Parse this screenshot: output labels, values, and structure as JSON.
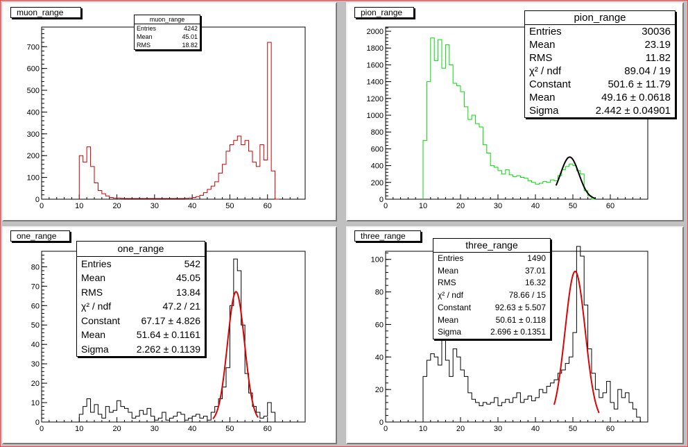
{
  "chart_data": [
    {
      "type": "bar",
      "title": "muon_range",
      "xlim": [
        0,
        70
      ],
      "ylim": [
        0,
        790
      ],
      "xticks": [
        0,
        10,
        20,
        30,
        40,
        50,
        60
      ],
      "yticks": [
        0,
        100,
        200,
        300,
        400,
        500,
        600,
        700
      ],
      "line_color": "#cc0000",
      "bin_width": 1,
      "x": [
        10,
        11,
        12,
        13,
        14,
        15,
        16,
        17,
        18,
        19,
        20,
        21,
        22,
        23,
        24,
        25,
        26,
        27,
        28,
        29,
        30,
        31,
        32,
        33,
        34,
        35,
        36,
        37,
        38,
        39,
        40,
        41,
        42,
        43,
        44,
        45,
        46,
        47,
        48,
        49,
        50,
        51,
        52,
        53,
        54,
        55,
        56,
        57,
        58,
        59,
        60,
        61,
        62
      ],
      "values": [
        200,
        170,
        240,
        150,
        75,
        40,
        25,
        15,
        8,
        5,
        5,
        4,
        3,
        3,
        3,
        3,
        3,
        3,
        3,
        3,
        3,
        3,
        3,
        3,
        3,
        3,
        3,
        3,
        4,
        5,
        8,
        12,
        18,
        30,
        45,
        60,
        80,
        120,
        160,
        220,
        250,
        270,
        290,
        250,
        270,
        220,
        170,
        150,
        250,
        180,
        720,
        130,
        0
      ],
      "stats": {
        "title": "muon_range",
        "rows": [
          {
            "label": "Entries",
            "value": "4242"
          },
          {
            "label": "Mean",
            "value": "45.01"
          },
          {
            "label": "RMS",
            "value": "18.82"
          }
        ]
      }
    },
    {
      "type": "bar",
      "title": "pion_range",
      "xlim": [
        0,
        70
      ],
      "ylim": [
        0,
        2050
      ],
      "xticks": [
        0,
        10,
        20,
        30,
        40,
        50,
        60
      ],
      "yticks": [
        0,
        200,
        400,
        600,
        800,
        1000,
        1200,
        1400,
        1600,
        1800,
        2000
      ],
      "line_color": "#00dd00",
      "bin_width": 1,
      "x": [
        10,
        11,
        12,
        13,
        14,
        15,
        16,
        17,
        18,
        19,
        20,
        21,
        22,
        23,
        24,
        25,
        26,
        27,
        28,
        29,
        30,
        31,
        32,
        33,
        34,
        35,
        36,
        37,
        38,
        39,
        40,
        41,
        42,
        43,
        44,
        45,
        46,
        47,
        48,
        49,
        50,
        51,
        52,
        53,
        54,
        55
      ],
      "values": [
        700,
        1400,
        1920,
        1650,
        1900,
        1560,
        1840,
        1600,
        1380,
        1350,
        1280,
        1100,
        950,
        1000,
        900,
        860,
        650,
        550,
        400,
        380,
        340,
        300,
        350,
        290,
        270,
        280,
        260,
        250,
        220,
        200,
        180,
        190,
        210,
        200,
        230,
        220,
        280,
        350,
        390,
        420,
        400,
        340,
        300,
        100,
        40,
        0
      ],
      "fit": {
        "color": "#000000",
        "constant": 501.6,
        "mean": 49.16,
        "sigma": 2.442,
        "range": [
          45.5,
          56
        ]
      },
      "stats": {
        "title": "pion_range",
        "rows": [
          {
            "label": "Entries",
            "value": "30036"
          },
          {
            "label": "Mean",
            "value": "23.19"
          },
          {
            "label": "RMS",
            "value": "11.82"
          },
          {
            "label": "χ² / ndf",
            "value": "89.04 / 19"
          },
          {
            "label": "Constant",
            "value": "501.6 ± 11.79"
          },
          {
            "label": "Mean",
            "value": "49.16 ± 0.0618"
          },
          {
            "label": "Sigma",
            "value": "2.442 ± 0.04901"
          }
        ]
      }
    },
    {
      "type": "bar",
      "title": "one_range",
      "xlim": [
        0,
        70
      ],
      "ylim": [
        0,
        88
      ],
      "xticks": [
        0,
        10,
        20,
        30,
        40,
        50,
        60
      ],
      "yticks": [
        0,
        10,
        20,
        30,
        40,
        50,
        60,
        70,
        80
      ],
      "line_color": "#000000",
      "bin_width": 1,
      "x": [
        10,
        11,
        12,
        13,
        14,
        15,
        16,
        17,
        18,
        19,
        20,
        21,
        22,
        23,
        24,
        25,
        26,
        27,
        28,
        29,
        30,
        31,
        32,
        33,
        34,
        35,
        36,
        37,
        38,
        39,
        40,
        41,
        42,
        43,
        44,
        45,
        46,
        47,
        48,
        49,
        50,
        51,
        52,
        53,
        54,
        55,
        56,
        57,
        58,
        59,
        60,
        61,
        62
      ],
      "values": [
        4,
        8,
        12,
        5,
        9,
        4,
        2,
        8,
        5,
        6,
        11,
        8,
        7,
        5,
        2,
        3,
        6,
        4,
        7,
        3,
        1,
        2,
        5,
        1,
        2,
        3,
        5,
        4,
        1,
        2,
        3,
        4,
        2,
        3,
        1,
        5,
        8,
        12,
        18,
        28,
        60,
        84,
        78,
        50,
        25,
        15,
        8,
        5,
        2,
        3,
        10,
        5,
        0
      ],
      "fit": {
        "color": "#dd0000",
        "constant": 67.17,
        "mean": 51.64,
        "sigma": 2.262,
        "range": [
          45.5,
          57.5
        ]
      },
      "stats": {
        "title": "one_range",
        "rows": [
          {
            "label": "Entries",
            "value": "542"
          },
          {
            "label": "Mean",
            "value": "45.05"
          },
          {
            "label": "RMS",
            "value": "13.84"
          },
          {
            "label": "χ² / ndf",
            "value": "47.2 / 21"
          },
          {
            "label": "Constant",
            "value": "67.17 ± 4.826"
          },
          {
            "label": "Mean",
            "value": "51.64 ± 0.1161"
          },
          {
            "label": "Sigma",
            "value": "2.262 ± 0.1139"
          }
        ]
      }
    },
    {
      "type": "bar",
      "title": "three_range",
      "xlim": [
        0,
        70
      ],
      "ylim": [
        0,
        105
      ],
      "xticks": [
        0,
        10,
        20,
        30,
        40,
        50,
        60
      ],
      "yticks": [
        0,
        20,
        40,
        60,
        80,
        100
      ],
      "line_color": "#000000",
      "bin_width": 1,
      "x": [
        10,
        11,
        12,
        13,
        14,
        15,
        16,
        17,
        18,
        19,
        20,
        21,
        22,
        23,
        24,
        25,
        26,
        27,
        28,
        29,
        30,
        31,
        32,
        33,
        34,
        35,
        36,
        37,
        38,
        39,
        40,
        41,
        42,
        43,
        44,
        45,
        46,
        47,
        48,
        49,
        50,
        51,
        52,
        53,
        54,
        55,
        56,
        57,
        58,
        59,
        60,
        61,
        62,
        63,
        64,
        65,
        66,
        67,
        68
      ],
      "values": [
        28,
        38,
        42,
        40,
        35,
        52,
        38,
        28,
        45,
        40,
        32,
        28,
        18,
        14,
        12,
        10,
        12,
        11,
        12,
        15,
        10,
        12,
        14,
        12,
        15,
        18,
        12,
        14,
        16,
        13,
        15,
        20,
        18,
        22,
        24,
        26,
        30,
        32,
        36,
        40,
        55,
        108,
        102,
        72,
        45,
        30,
        20,
        15,
        18,
        25,
        12,
        8,
        20,
        15,
        18,
        12,
        8,
        3,
        0
      ],
      "fit": {
        "color": "#dd0000",
        "constant": 92.63,
        "mean": 50.61,
        "sigma": 2.696,
        "range": [
          45,
          57
        ]
      },
      "stats": {
        "title": "three_range",
        "rows": [
          {
            "label": "Entries",
            "value": "1490"
          },
          {
            "label": "Mean",
            "value": "37.01"
          },
          {
            "label": "RMS",
            "value": "16.32"
          },
          {
            "label": "χ² / ndf",
            "value": "78.66 / 15"
          },
          {
            "label": "Constant",
            "value": "92.63 ± 5.507"
          },
          {
            "label": "Mean",
            "value": "50.61 ± 0.118"
          },
          {
            "label": "Sigma",
            "value": "2.696 ± 0.1351"
          }
        ]
      }
    }
  ]
}
